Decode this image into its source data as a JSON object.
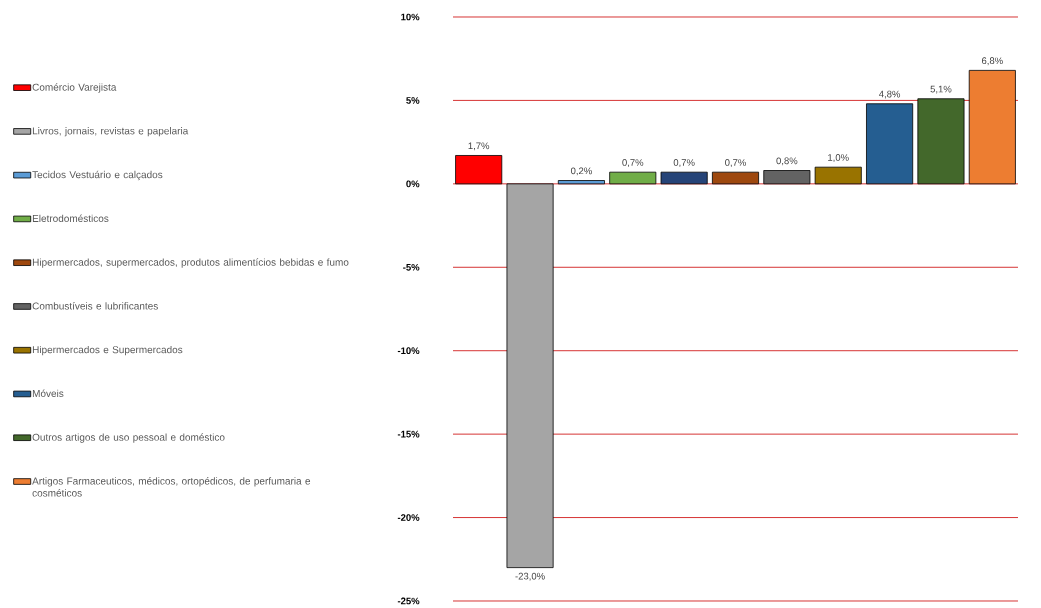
{
  "chart_data": {
    "type": "bar",
    "categories": [
      null
    ],
    "series": [
      {
        "name": "Comércio Varejista",
        "color": "#ff0000",
        "values": [
          1.7
        ],
        "value_labels": [
          "1,7%"
        ]
      },
      {
        "name": "Livros, jornais, revistas e papelaria",
        "color": "#a5a5a5",
        "values": [
          -23.0
        ],
        "value_labels": [
          "-23,0%"
        ]
      },
      {
        "name": "Tecidos Vestuário e calçados",
        "color": "#5b9bd5",
        "values": [
          0.2
        ],
        "value_labels": [
          "0,2%"
        ]
      },
      {
        "name": "Eletrodomésticos",
        "color": "#70ad47",
        "values": [
          0.7
        ],
        "value_labels": [
          "0,7%"
        ]
      },
      {
        "color": "#264478",
        "values": [
          0.7
        ],
        "value_labels": [
          "0,7%"
        ]
      },
      {
        "name": "Hipermercados, supermercados, produtos alimentícios bebidas e fumo",
        "color": "#9e480e",
        "values": [
          0.7
        ],
        "value_labels": [
          "0,7%"
        ]
      },
      {
        "name": "Combustíveis e lubrificantes",
        "color": "#636363",
        "values": [
          0.8
        ],
        "value_labels": [
          "0,8%"
        ]
      },
      {
        "name": "Hipermercados e Supermercados",
        "color": "#997300",
        "values": [
          1.0
        ],
        "value_labels": [
          "1,0%"
        ]
      },
      {
        "name": "Móveis",
        "color": "#255e91",
        "values": [
          4.8
        ],
        "value_labels": [
          "4,8%"
        ]
      },
      {
        "name": "Outros artigos de uso pessoal e doméstico",
        "color": "#43682b",
        "values": [
          5.1
        ],
        "value_labels": [
          "5,1%"
        ]
      },
      {
        "name": "Artigos Farmaceuticos, médicos, ortopédicos, de perfumaria e cosméticos",
        "color": "#ed7d31",
        "values": [
          6.8
        ],
        "value_labels": [
          "6,8%"
        ]
      }
    ],
    "ylim": [
      -25,
      10
    ],
    "yticks": [
      {
        "value": 10,
        "label": "10%"
      },
      {
        "value": 5,
        "label": "5%"
      },
      {
        "value": 0,
        "label": "0%"
      },
      {
        "value": -5,
        "label": "-5%"
      },
      {
        "value": -10,
        "label": "-10%"
      },
      {
        "value": -15,
        "label": "-15%"
      },
      {
        "value": -20,
        "label": "-20%"
      },
      {
        "value": -25,
        "label": "-25%"
      }
    ],
    "grid": "y",
    "legend": "left"
  }
}
